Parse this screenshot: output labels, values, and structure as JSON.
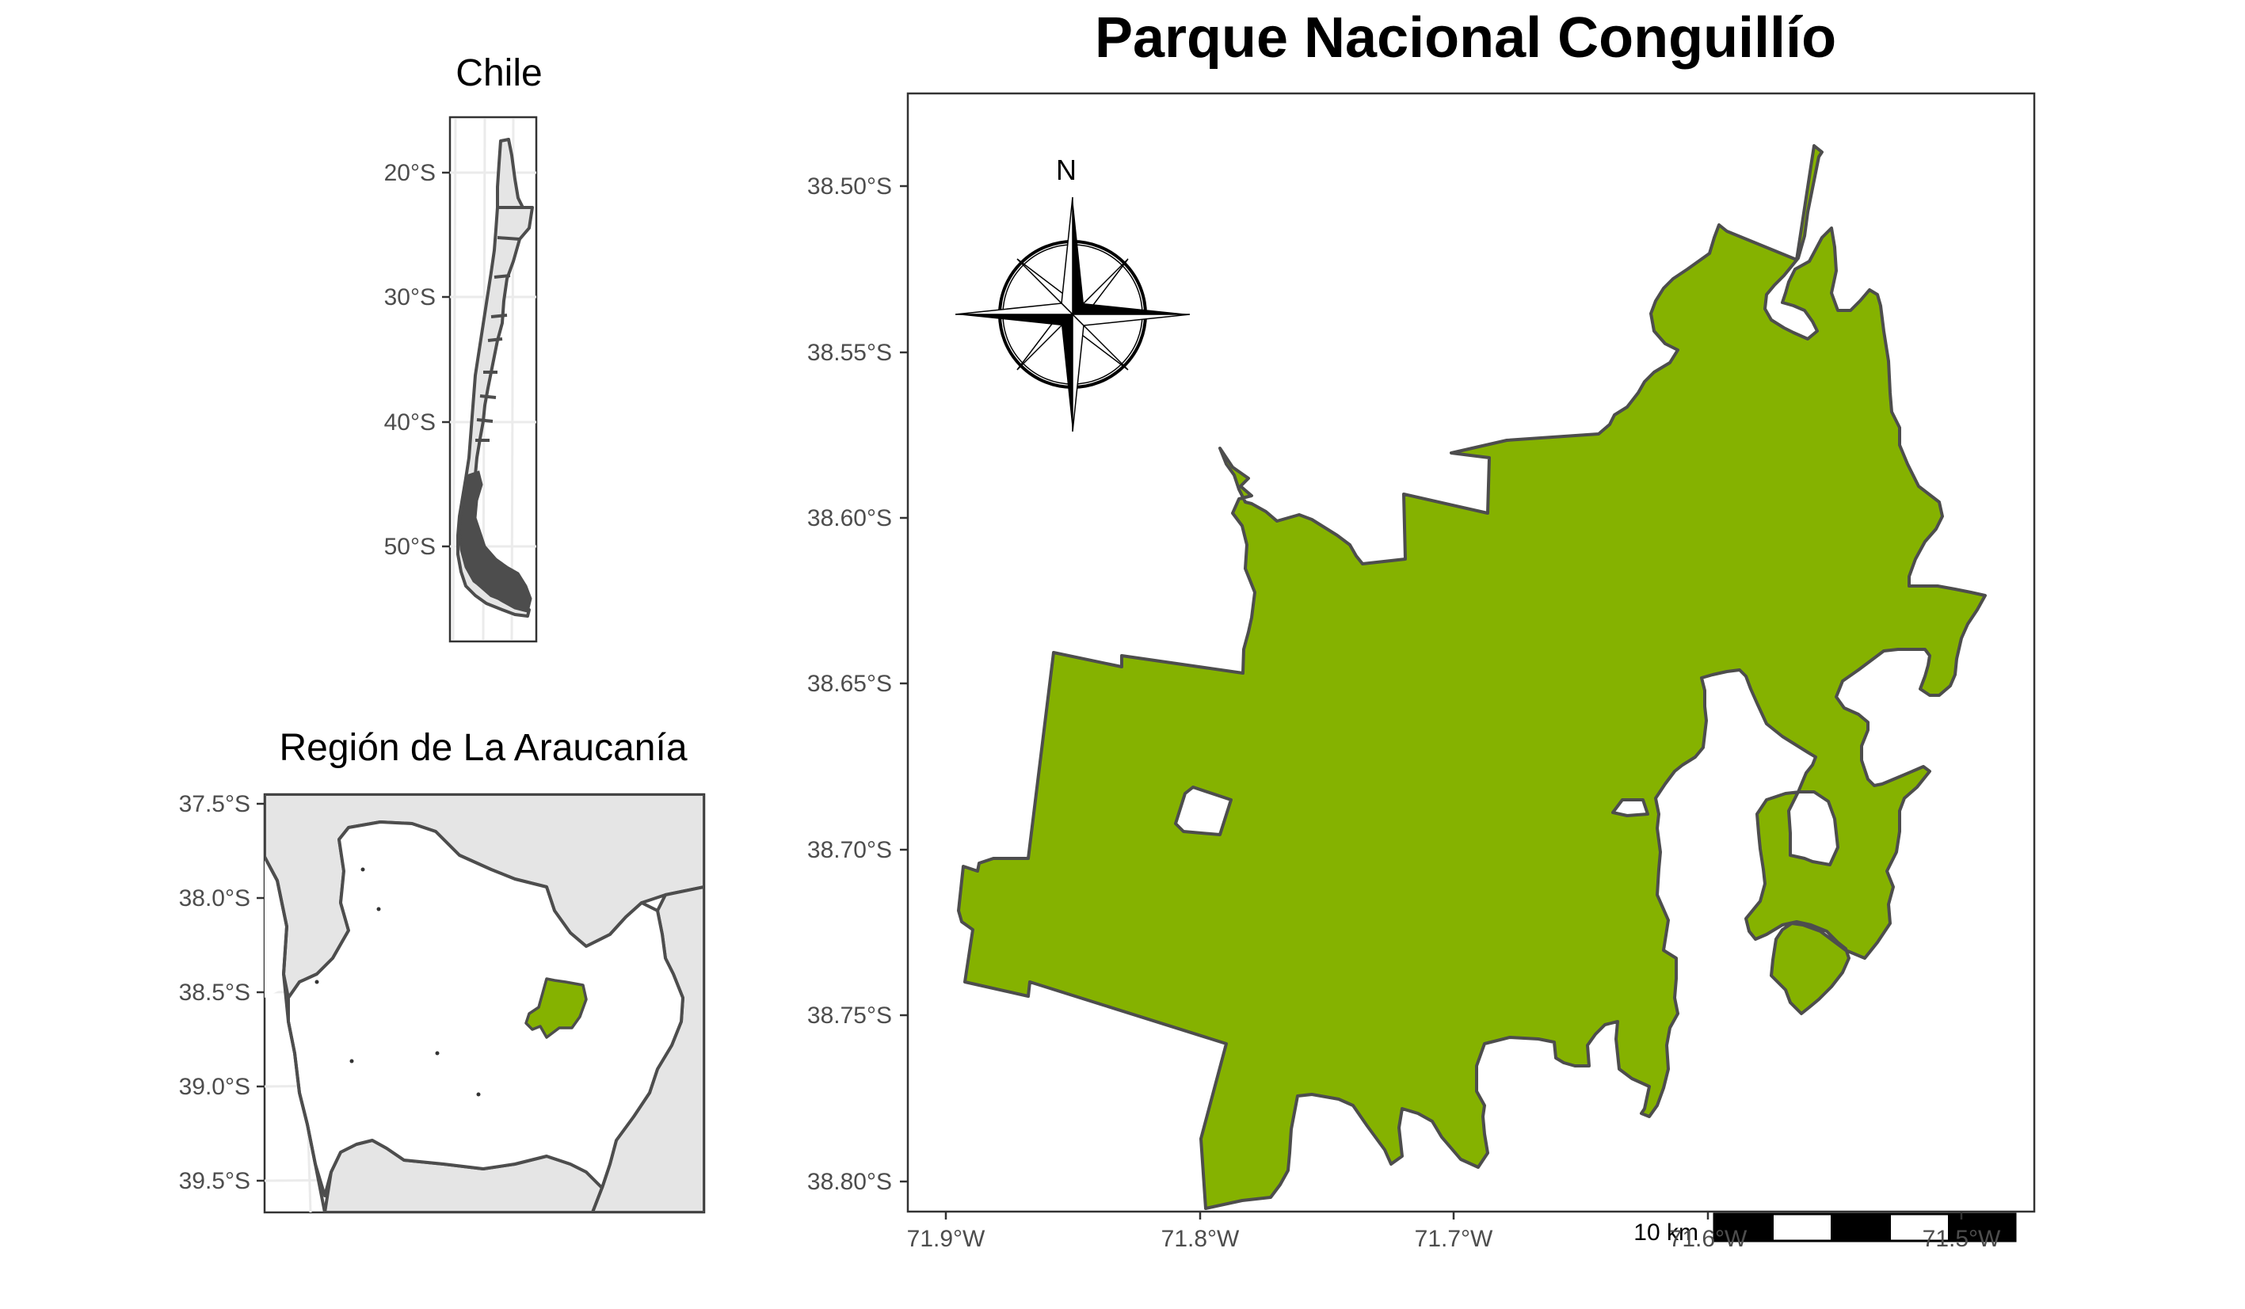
{
  "main_map": {
    "title": "Parque Nacional Conguillío",
    "y_ticks": [
      "38.50°S",
      "38.55°S",
      "38.60°S",
      "38.65°S",
      "38.70°S",
      "38.75°S",
      "38.80°S"
    ],
    "x_ticks": [
      "71.9°W",
      "71.8°W",
      "71.7°W",
      "71.6°W",
      "71.5°W"
    ],
    "park_fill": "#85b200",
    "park_outline": "#4d4d4d",
    "north_arrow_label": "N",
    "scale_bar_label": "10 km"
  },
  "inset_chile": {
    "title": "Chile",
    "y_ticks": [
      "20°S",
      "30°S",
      "40°S",
      "50°S"
    ],
    "land_fill": "#e5e5e5",
    "outline": "#4d4d4d"
  },
  "inset_region": {
    "title": "Región de La Araucanía",
    "y_ticks": [
      "37.5°S",
      "38.0°S",
      "38.5°S",
      "39.0°S",
      "39.5°S"
    ],
    "region_fill": "#ffffff",
    "neighbour_fill": "#e5e5e5",
    "park_fill": "#85b200"
  }
}
